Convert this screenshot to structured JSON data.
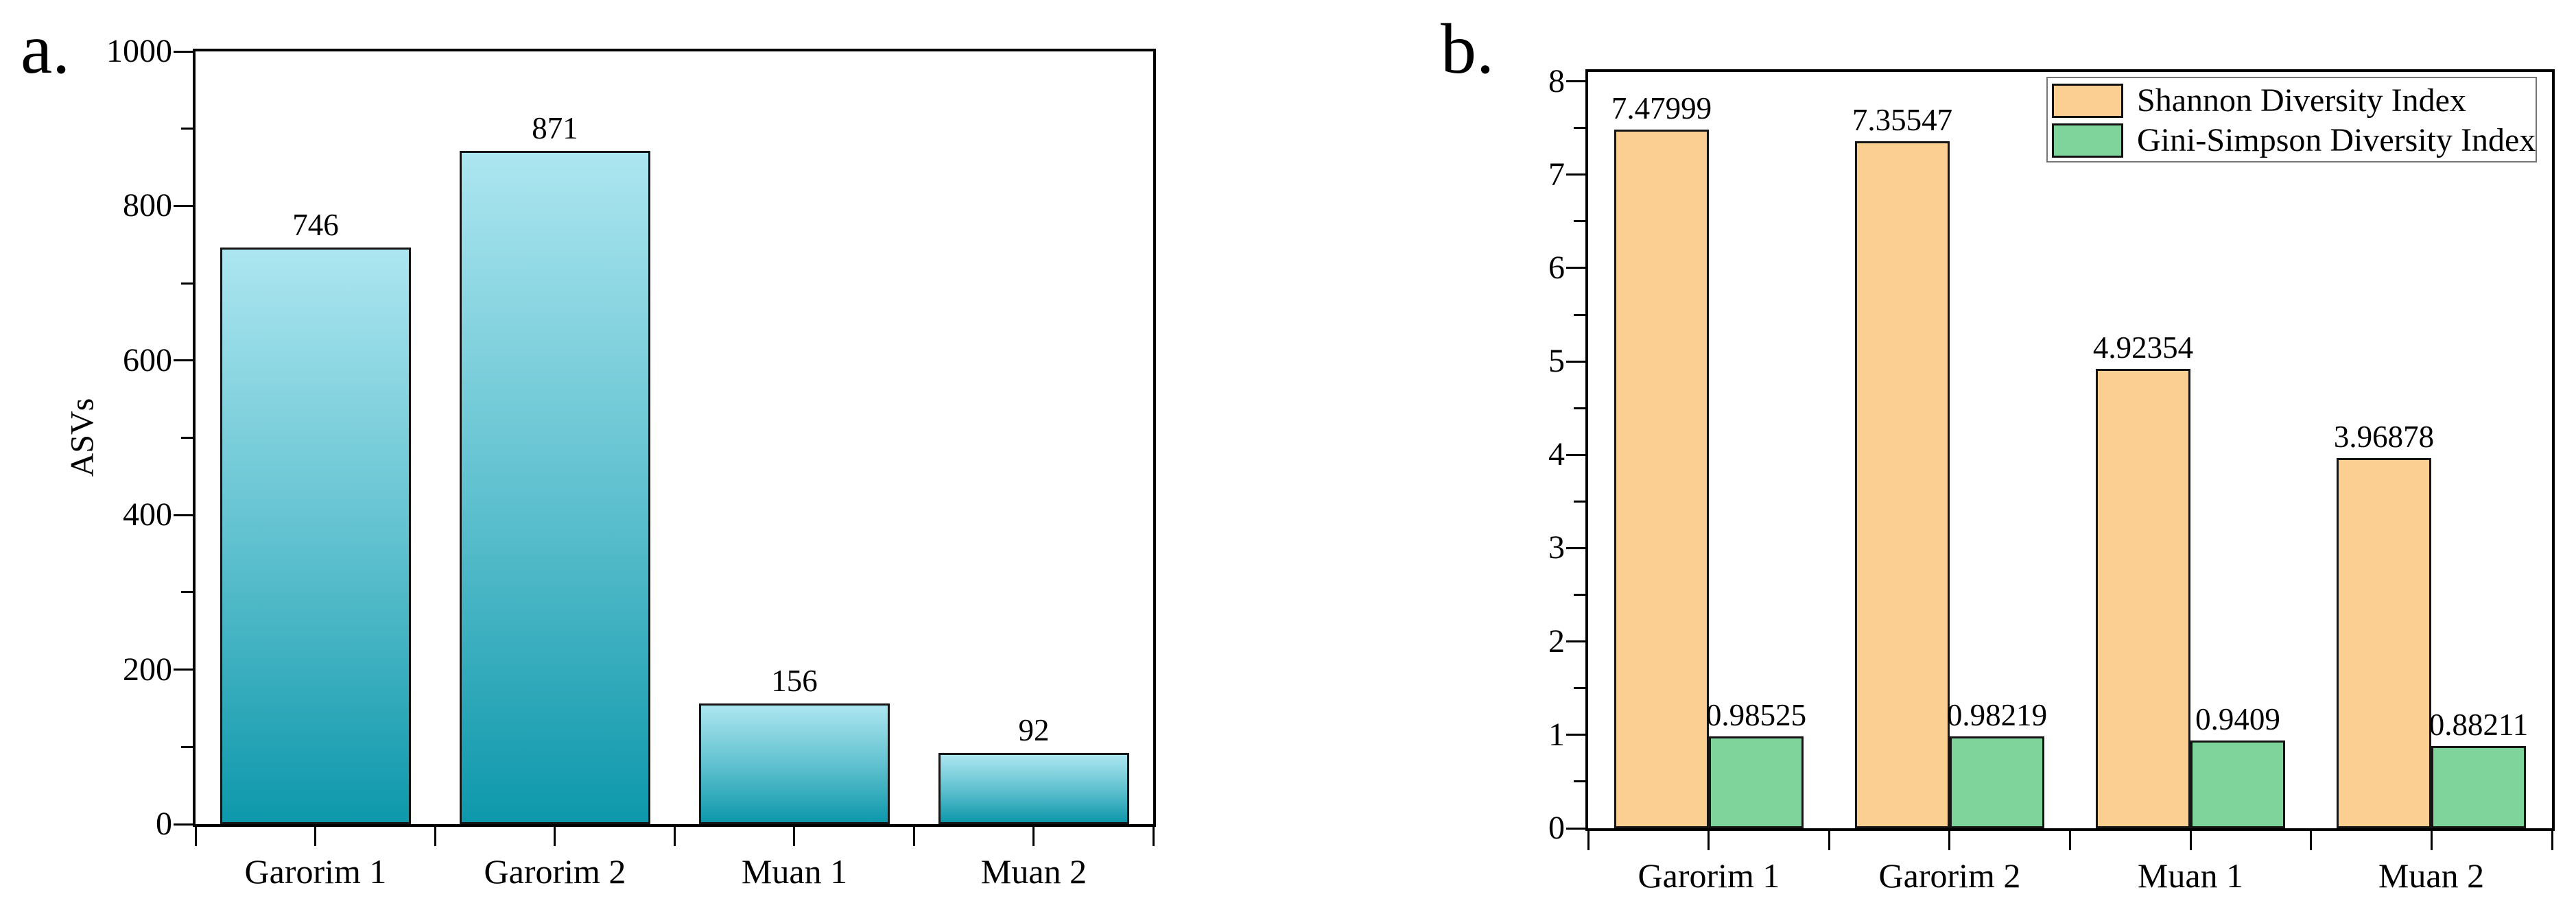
{
  "figure": {
    "background_color": "#ffffff",
    "panels": [
      {
        "letter": "a."
      },
      {
        "letter": "b."
      }
    ]
  },
  "chart_data": [
    {
      "type": "bar",
      "panel": "a",
      "title": "",
      "xlabel": "",
      "ylabel": "ASVs",
      "categories": [
        "Garorim 1",
        "Garorim 2",
        "Muan 1",
        "Muan 2"
      ],
      "values": [
        746,
        871,
        156,
        92
      ],
      "value_labels": [
        "746",
        "871",
        "156",
        "92"
      ],
      "ylim": [
        0,
        1000
      ],
      "ytick_values": [
        0,
        200,
        400,
        600,
        800,
        1000
      ],
      "ytick_labels": [
        "0",
        "200",
        "400",
        "600",
        "800",
        "1000"
      ],
      "ytick_minor_values": [
        100,
        300,
        500,
        700,
        900
      ],
      "grid": false,
      "legend": null,
      "bar_style": {
        "fill_gradient_top": "#ACE6F0",
        "fill_gradient_mid": "#62C2D0",
        "fill_gradient_bottom": "#0D98AB",
        "border_color": "#151515"
      }
    },
    {
      "type": "bar",
      "panel": "b",
      "title": "",
      "xlabel": "",
      "ylabel": "",
      "categories": [
        "Garorim 1",
        "Garorim 2",
        "Muan 1",
        "Muan 2"
      ],
      "series": [
        {
          "name": "Shannon Diversity Index",
          "color": "#FBCE92",
          "values": [
            7.47999,
            7.35547,
            4.92354,
            3.96878
          ],
          "value_labels": [
            "7.47999",
            "7.35547",
            "4.92354",
            "3.96878"
          ]
        },
        {
          "name": "Gini-Simpson Diversity Index",
          "color": "#7ED49B",
          "values": [
            0.98525,
            0.98219,
            0.9409,
            0.88211
          ],
          "value_labels": [
            "0.98525",
            "0.98219",
            "0.9409",
            "0.88211"
          ]
        }
      ],
      "ylim": [
        0,
        8.1
      ],
      "ytick_values": [
        0,
        1,
        2,
        3,
        4,
        5,
        6,
        7,
        8
      ],
      "ytick_labels": [
        "0",
        "1",
        "2",
        "3",
        "4",
        "5",
        "6",
        "7",
        "8"
      ],
      "ytick_minor_values": [
        0.5,
        1.5,
        2.5,
        3.5,
        4.5,
        5.5,
        6.5,
        7.5
      ],
      "grid": false,
      "legend": {
        "position": "top-right",
        "border_color": "#777777"
      },
      "bar_style": {
        "border_color": "#151515"
      }
    }
  ]
}
